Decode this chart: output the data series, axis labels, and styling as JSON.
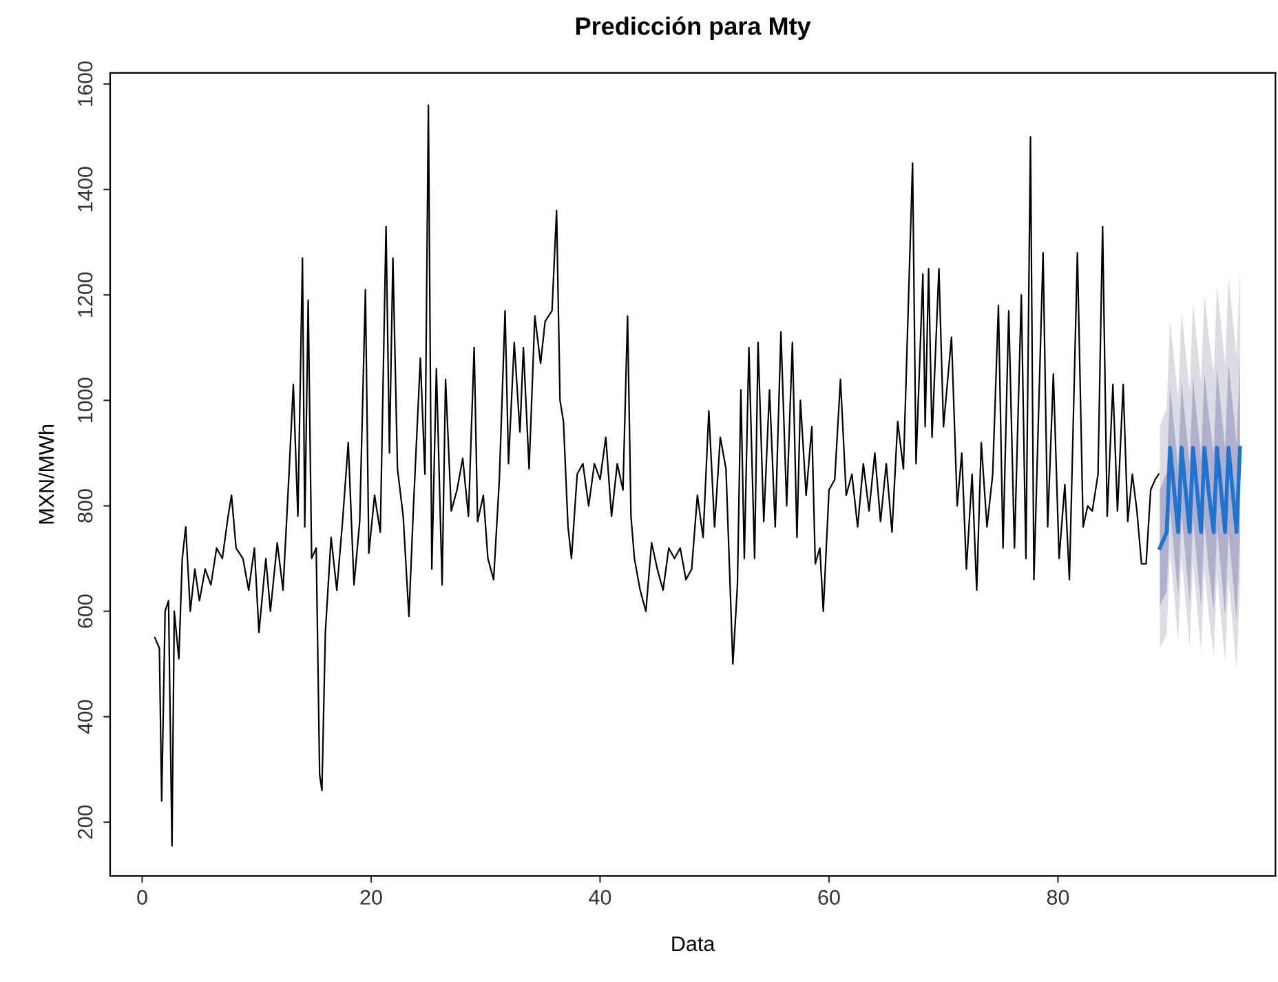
{
  "chart_data": {
    "type": "line",
    "title": "Predicción para Mty",
    "xlabel": "Data",
    "ylabel": "MXN/MWh",
    "xlim": [
      -2.8,
      99
    ],
    "ylim": [
      98,
      1621
    ],
    "xticks": [
      0,
      20,
      40,
      60,
      80
    ],
    "yticks": [
      200,
      400,
      600,
      800,
      1000,
      1200,
      1400,
      1600
    ],
    "grid": false,
    "marker": "none",
    "line_style": "solid",
    "series": [
      {
        "color": "#000000",
        "x": [
          1.1,
          1.5,
          1.7,
          2.0,
          2.3,
          2.6,
          2.8,
          3.2,
          3.5,
          3.8,
          4.2,
          4.6,
          5.0,
          5.5,
          6.0,
          6.5,
          7.0,
          7.5,
          7.8,
          8.2,
          8.8,
          9.3,
          9.8,
          10.2,
          10.8,
          11.2,
          11.8,
          12.3,
          12.8,
          13.2,
          13.6,
          14.0,
          14.2,
          14.5,
          14.8,
          15.2,
          15.5,
          15.7,
          16.0,
          16.5,
          17.0,
          17.5,
          18.0,
          18.5,
          19.0,
          19.5,
          19.8,
          20.3,
          20.8,
          21.3,
          21.6,
          21.9,
          22.3,
          22.8,
          23.3,
          23.7,
          24.3,
          24.7,
          25.0,
          25.3,
          25.7,
          26.2,
          26.5,
          27.0,
          27.5,
          28.0,
          28.5,
          29.0,
          29.3,
          29.8,
          30.2,
          30.7,
          31.2,
          31.7,
          32.0,
          32.5,
          33.0,
          33.3,
          33.8,
          34.3,
          34.8,
          35.2,
          35.8,
          36.2,
          36.5,
          36.8,
          37.2,
          37.5,
          38.0,
          38.5,
          39.0,
          39.5,
          40.0,
          40.5,
          41.0,
          41.5,
          42.0,
          42.4,
          42.7,
          43.0,
          43.5,
          44.0,
          44.5,
          45.0,
          45.5,
          46.0,
          46.5,
          47.0,
          47.5,
          48.0,
          48.5,
          49.0,
          49.5,
          50.0,
          50.5,
          51.0,
          51.6,
          52.0,
          52.3,
          52.6,
          53.0,
          53.5,
          53.8,
          54.3,
          54.8,
          55.3,
          55.8,
          56.3,
          56.8,
          57.2,
          57.5,
          58.0,
          58.5,
          58.8,
          59.2,
          59.5,
          60.0,
          60.5,
          61.0,
          61.5,
          62.0,
          62.5,
          63.0,
          63.5,
          64.0,
          64.5,
          65.0,
          65.5,
          66.0,
          66.5,
          67.3,
          67.6,
          68.2,
          68.4,
          68.7,
          69.0,
          69.6,
          70.0,
          70.7,
          71.2,
          71.6,
          72.0,
          72.5,
          72.9,
          73.3,
          73.8,
          74.3,
          74.8,
          75.2,
          75.7,
          76.2,
          76.8,
          77.2,
          77.6,
          77.9,
          78.7,
          79.1,
          79.6,
          80.1,
          80.6,
          81.0,
          81.7,
          82.2,
          82.6,
          83.0,
          83.5,
          83.9,
          84.3,
          84.8,
          85.2,
          85.7,
          86.1,
          86.5,
          86.9,
          87.3,
          87.7,
          88.1,
          88.5,
          88.8
        ],
        "values": [
          550,
          530,
          240,
          600,
          620,
          155,
          600,
          510,
          700,
          760,
          600,
          680,
          620,
          680,
          650,
          720,
          700,
          780,
          820,
          720,
          700,
          640,
          720,
          560,
          700,
          600,
          730,
          640,
          850,
          1030,
          780,
          1270,
          760,
          1190,
          700,
          720,
          290,
          260,
          560,
          740,
          640,
          770,
          920,
          650,
          770,
          1210,
          710,
          820,
          750,
          1330,
          900,
          1270,
          870,
          780,
          590,
          800,
          1080,
          860,
          1560,
          680,
          1060,
          650,
          1040,
          790,
          830,
          890,
          780,
          1100,
          770,
          820,
          700,
          660,
          850,
          1170,
          880,
          1110,
          940,
          1100,
          870,
          1160,
          1070,
          1150,
          1170,
          1360,
          1000,
          960,
          760,
          700,
          860,
          880,
          800,
          880,
          850,
          930,
          780,
          880,
          830,
          1160,
          780,
          700,
          640,
          600,
          730,
          680,
          640,
          720,
          700,
          720,
          660,
          680,
          820,
          740,
          980,
          760,
          930,
          870,
          500,
          650,
          1020,
          700,
          1100,
          700,
          1110,
          770,
          1020,
          760,
          1130,
          800,
          1110,
          740,
          1000,
          820,
          950,
          690,
          720,
          600,
          830,
          850,
          1040,
          820,
          860,
          760,
          880,
          790,
          900,
          770,
          880,
          750,
          960,
          870,
          1450,
          880,
          1240,
          950,
          1250,
          930,
          1250,
          950,
          1120,
          800,
          900,
          680,
          860,
          640,
          920,
          760,
          860,
          1180,
          720,
          1170,
          720,
          1200,
          700,
          1500,
          660,
          1280,
          760,
          1050,
          700,
          840,
          660,
          1280,
          760,
          800,
          790,
          860,
          1330,
          780,
          1030,
          790,
          1030,
          770,
          860,
          790,
          690,
          690,
          830,
          850,
          860
        ]
      },
      {
        "color": "#dcdce4",
        "x": [
          88.9,
          89.5,
          89.8,
          90.15,
          90.5,
          90.8,
          91.15,
          91.5,
          91.8,
          92.15,
          92.5,
          92.8,
          93.15,
          93.6,
          93.9,
          94.25,
          94.6,
          94.9,
          95.25,
          95.6,
          95.9
        ],
        "values": [
          null,
          null,
          null,
          null,
          null,
          null,
          null,
          null,
          null,
          null,
          null,
          null,
          null,
          null,
          null,
          null,
          null,
          null,
          null,
          null,
          null
        ],
        "lower": [
          530,
          556,
          713,
          629,
          546,
          702,
          619,
          535,
          692,
          608,
          525,
          681,
          598,
          514,
          671,
          587,
          504,
          660,
          577,
          493,
          650
        ],
        "upper": [
          950,
          986,
          1151,
          1077,
          1002,
          1168,
          1093,
          1019,
          1184,
          1110,
          1035,
          1201,
          1126,
          1052,
          1217,
          1143,
          1068,
          1234,
          1159,
          1085,
          1250
        ]
      },
      {
        "color": "#b0b0cc",
        "x": [
          88.9,
          89.5,
          89.8,
          90.15,
          90.5,
          90.8,
          91.15,
          91.5,
          91.8,
          92.15,
          92.5,
          92.8,
          93.15,
          93.6,
          93.9,
          94.25,
          94.6,
          94.9,
          95.25,
          95.6,
          95.9
        ],
        "values": [
          null,
          null,
          null,
          null,
          null,
          null,
          null,
          null,
          null,
          null,
          null,
          null,
          null,
          null,
          null,
          null,
          null,
          null,
          null,
          null,
          null
        ],
        "lower": [
          610,
          637,
          794,
          711,
          628,
          785,
          702,
          619,
          776,
          693,
          610,
          767,
          684,
          601,
          758,
          675,
          592,
          749,
          666,
          583,
          740
        ],
        "upper": [
          830,
          863,
          1026,
          949,
          872,
          1035,
          958,
          881,
          1044,
          967,
          890,
          1053,
          976,
          899,
          1062,
          985,
          908,
          1071,
          994,
          917,
          1080
        ]
      },
      {
        "color": "#1f74d0",
        "x": [
          88.9,
          89.5,
          89.8,
          90.15,
          90.5,
          90.8,
          91.15,
          91.5,
          91.8,
          92.15,
          92.5,
          92.8,
          93.15,
          93.6,
          93.9,
          94.25,
          94.6,
          94.9,
          95.25,
          95.6,
          95.9
        ],
        "values": [
          720,
          750,
          910,
          830,
          750,
          910,
          830,
          750,
          910,
          830,
          750,
          910,
          830,
          750,
          910,
          830,
          750,
          910,
          830,
          750,
          910
        ]
      }
    ]
  }
}
